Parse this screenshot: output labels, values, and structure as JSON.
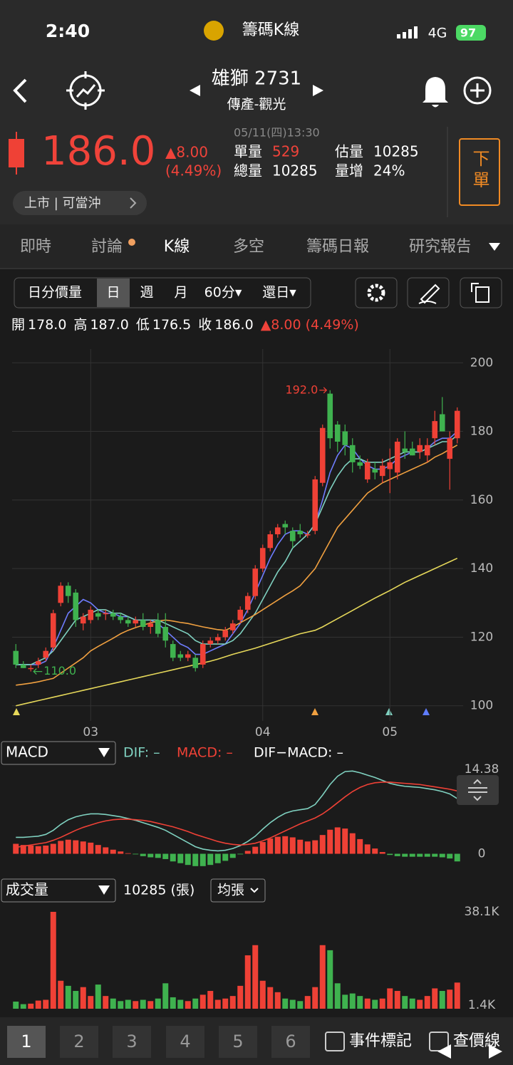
{
  "status_bar": {
    "time": "2:40",
    "app_title": "籌碼K線",
    "network": "4G",
    "battery": "97"
  },
  "header": {
    "stock_name": "雄獅 2731",
    "sector": "傳產-觀光"
  },
  "quote": {
    "price": "186.0",
    "change": "▲8.00",
    "change_pct": "(4.49%)",
    "timestamp": "05/11(四)13:30",
    "items": [
      {
        "label": "單量",
        "value": "529"
      },
      {
        "label": "總量",
        "value": "10285"
      },
      {
        "label": "估量",
        "value": "10285"
      },
      {
        "label": "量增",
        "value": "24%"
      }
    ],
    "market_tag": "上市 | 可當沖",
    "order_button": "下單"
  },
  "tabs": [
    "即時",
    "討論",
    "K線",
    "多空",
    "籌碼日報",
    "研究報告"
  ],
  "toolbar": [
    "日分價量",
    "日",
    "週",
    "月",
    "60分▾",
    "還日▾"
  ],
  "ohlc_summary": {
    "items": [
      {
        "label": "開",
        "value": "178.0"
      },
      {
        "label": "高",
        "value": "187.0"
      },
      {
        "label": "低",
        "value": "176.5"
      },
      {
        "label": "收",
        "value": "186.0"
      }
    ],
    "change": "▲8.00 (4.49%)"
  },
  "chart_data": [
    {
      "type": "candlestick",
      "up_color": "#ef4136",
      "down_color": "#3fb24f",
      "grid": true,
      "ylim": [
        96,
        204
      ],
      "yticks": [
        200,
        180,
        160,
        140,
        120,
        100
      ],
      "categories": [
        null,
        null,
        null,
        null,
        null,
        null,
        null,
        null,
        null,
        null,
        "03",
        null,
        null,
        null,
        null,
        null,
        null,
        null,
        null,
        null,
        null,
        null,
        null,
        null,
        null,
        null,
        null,
        null,
        null,
        null,
        null,
        null,
        null,
        "04",
        null,
        null,
        null,
        null,
        null,
        null,
        null,
        null,
        null,
        null,
        null,
        null,
        null,
        null,
        null,
        null,
        "05",
        null,
        null,
        null,
        null,
        null,
        null,
        null,
        null,
        null
      ],
      "open": [
        116,
        112,
        111,
        112,
        114,
        117,
        130,
        135,
        133,
        124,
        125,
        127,
        127,
        127,
        126,
        125,
        124,
        125,
        123,
        125,
        123,
        118,
        115,
        114,
        114,
        112,
        118,
        119,
        120,
        122,
        125,
        128,
        132,
        140,
        146,
        150,
        153,
        151,
        151,
        150,
        151,
        165,
        191,
        182,
        180,
        176,
        171,
        166,
        169,
        167,
        169,
        168,
        175,
        175,
        174,
        173,
        178,
        185,
        172,
        178
      ],
      "high": [
        118,
        113,
        112,
        114,
        117,
        128,
        136,
        136,
        134,
        127,
        129,
        128,
        128,
        128,
        127,
        126,
        126,
        127,
        125,
        127,
        127,
        119,
        116,
        116,
        115,
        119,
        120,
        121,
        123,
        125,
        129,
        133,
        141,
        147,
        151,
        153,
        154,
        152,
        153,
        151,
        167,
        182,
        192,
        183,
        182,
        178,
        173,
        172,
        171,
        172,
        175,
        178,
        180,
        177,
        178,
        178,
        186,
        190,
        180,
        187
      ],
      "low": [
        111,
        111,
        110,
        111,
        113,
        116,
        129,
        130,
        123,
        122,
        124,
        125,
        125,
        125,
        124,
        123,
        123,
        122,
        121,
        120,
        117,
        113,
        113,
        113,
        110,
        111,
        117,
        118,
        119,
        121,
        124,
        127,
        131,
        139,
        145,
        149,
        150,
        146,
        149,
        149,
        150,
        164,
        175,
        174,
        173,
        168,
        169,
        165,
        166,
        165,
        162,
        166,
        172,
        173,
        172,
        171,
        176,
        180,
        163,
        176.5
      ],
      "close": [
        112,
        111,
        111,
        113,
        116,
        127,
        135,
        132,
        125,
        126,
        128,
        126,
        127,
        126,
        125,
        124,
        125,
        123,
        124,
        121,
        119,
        114,
        114,
        115,
        111,
        118,
        119,
        120,
        122,
        124,
        128,
        132,
        140,
        146,
        150,
        152,
        152,
        148,
        150,
        150,
        166,
        181,
        178,
        177,
        176,
        171,
        170,
        171,
        168,
        170,
        171,
        177,
        174,
        173,
        176,
        176,
        183,
        180,
        178,
        186
      ],
      "ma_lines": [
        {
          "color": "#6f7dff",
          "values": [
            112,
            112,
            112,
            112,
            113,
            117,
            122,
            127,
            129,
            131,
            130,
            128,
            127,
            127,
            126,
            126,
            125,
            125,
            125,
            124,
            122,
            120,
            118,
            117,
            115,
            115,
            116,
            117,
            118,
            121,
            124,
            128,
            133,
            138,
            143,
            147,
            150,
            151,
            151,
            150,
            153,
            160,
            168,
            173,
            176,
            175,
            172,
            170,
            169,
            169,
            170,
            172,
            173,
            174,
            174,
            175,
            177,
            178,
            178,
            180
          ]
        },
        {
          "color": "#7fd1c0",
          "values": [
            112,
            112,
            112,
            113,
            114,
            116,
            119,
            122,
            125,
            126,
            127,
            128,
            128,
            127,
            127,
            126,
            125,
            125,
            125,
            125,
            124,
            123,
            122,
            121,
            119,
            118,
            118,
            118,
            118,
            119,
            121,
            124,
            127,
            131,
            135,
            139,
            142,
            146,
            148,
            150,
            153,
            158,
            163,
            167,
            170,
            172,
            172,
            171,
            171,
            171,
            172,
            173,
            174,
            174,
            174,
            175,
            176,
            177,
            177,
            179
          ]
        },
        {
          "color": "#f0a040",
          "values": [
            106,
            106.3,
            106.6,
            107,
            107.5,
            108,
            109.5,
            111,
            112.5,
            114,
            116,
            117.3,
            118.5,
            119.7,
            121,
            122,
            122.8,
            123.5,
            124.2,
            124.7,
            125,
            124.7,
            124.3,
            124,
            123.5,
            123,
            122.6,
            122.2,
            122,
            123,
            124.2,
            125.4,
            126.6,
            128,
            129.4,
            130.8,
            132.2,
            133.5,
            135,
            137.5,
            140,
            144,
            148,
            152,
            154.5,
            157,
            159.5,
            162,
            163.5,
            165,
            166,
            167,
            168,
            169,
            170,
            171,
            172.5,
            173.5,
            174.8,
            176
          ]
        },
        {
          "color": "#e6d85a",
          "values": [
            100,
            100.5,
            101,
            101.5,
            102,
            102.5,
            103,
            103.5,
            104,
            104.5,
            105,
            105.5,
            106,
            106.5,
            107,
            107.5,
            108,
            108.5,
            109,
            109.5,
            110,
            110.5,
            111,
            111.5,
            112,
            112.5,
            113,
            113.6,
            114.3,
            115,
            115.6,
            116.2,
            116.8,
            117.5,
            118.2,
            118.9,
            119.6,
            120.3,
            121,
            121.5,
            122,
            123,
            124.2,
            125.4,
            126.6,
            127.8,
            129,
            130.2,
            131.4,
            132.5,
            133.6,
            134.8,
            136,
            137,
            138,
            139,
            140,
            141,
            142,
            143
          ]
        }
      ],
      "annotations": [
        {
          "value": 192,
          "label": "192.0"
        },
        {
          "value": 110,
          "label": "110.0"
        }
      ]
    },
    {
      "type": "macd",
      "indicator": "MACD",
      "ylim": [
        -2,
        14.38
      ],
      "yticks": [
        14.38,
        0
      ],
      "up_color": "#ef4136",
      "down_color": "#3fb24f",
      "legend": [
        {
          "text": "DIF: –",
          "color": "#7fd1c0"
        },
        {
          "text": "MACD: –",
          "color": "#ef4136"
        },
        {
          "text": "DIF−MACD: –",
          "color": "#ffffff"
        }
      ],
      "series": [
        {
          "color": "#7fd1c0",
          "values": [
            2.8,
            2.8,
            2.9,
            3.0,
            3.3,
            4.0,
            5.0,
            5.8,
            6.3,
            6.6,
            6.8,
            6.8,
            6.7,
            6.5,
            6.3,
            6.0,
            5.7,
            5.3,
            4.9,
            4.5,
            4.0,
            3.3,
            2.6,
            1.9,
            1.2,
            0.8,
            0.6,
            0.5,
            0.6,
            0.9,
            1.4,
            2.1,
            3.0,
            4.2,
            5.3,
            6.2,
            6.9,
            7.3,
            7.5,
            7.7,
            8.4,
            10.0,
            11.8,
            13.2,
            14.0,
            14.1,
            13.8,
            13.4,
            13.0,
            12.5,
            12.0,
            11.7,
            11.5,
            11.4,
            11.3,
            11.1,
            10.9,
            10.6,
            10.2,
            9.4
          ]
        },
        {
          "color": "#ef4136",
          "values": [
            1.1,
            1.3,
            1.5,
            1.7,
            1.9,
            2.3,
            2.8,
            3.4,
            4.0,
            4.5,
            4.9,
            5.3,
            5.6,
            5.8,
            5.9,
            5.9,
            5.8,
            5.7,
            5.5,
            5.2,
            4.9,
            4.6,
            4.2,
            3.8,
            3.3,
            2.9,
            2.5,
            2.1,
            1.8,
            1.6,
            1.5,
            1.6,
            1.8,
            2.2,
            2.7,
            3.3,
            3.9,
            4.5,
            5.1,
            5.6,
            6.1,
            6.8,
            7.7,
            8.7,
            9.7,
            10.6,
            11.3,
            11.8,
            12.1,
            12.2,
            12.2,
            12.1,
            12.0,
            11.9,
            11.8,
            11.6,
            11.4,
            11.2,
            11.0,
            10.7
          ]
        }
      ],
      "histogram": [
        1.7,
        1.5,
        1.4,
        1.3,
        1.4,
        1.7,
        2.2,
        2.4,
        2.3,
        2.1,
        1.9,
        1.5,
        1.1,
        0.7,
        0.4,
        0.1,
        -0.1,
        -0.4,
        -0.6,
        -0.7,
        -0.9,
        -1.3,
        -1.6,
        -1.9,
        -2.1,
        -2.1,
        -1.9,
        -1.6,
        -1.2,
        -0.7,
        -0.1,
        0.5,
        1.2,
        2.0,
        2.6,
        2.9,
        3.0,
        2.8,
        2.4,
        2.1,
        2.3,
        3.2,
        4.1,
        4.5,
        4.3,
        3.5,
        2.5,
        1.6,
        0.9,
        0.3,
        -0.2,
        -0.4,
        -0.5,
        -0.5,
        -0.5,
        -0.5,
        -0.5,
        -0.6,
        -0.8,
        -1.3
      ]
    },
    {
      "type": "bar",
      "indicator": "成交量",
      "total": "10285 (張)",
      "average_button": "均張",
      "ylim": [
        0,
        38100
      ],
      "yticks": [
        {
          "value": 38100,
          "label": "38.1K"
        },
        {
          "value": 1400,
          "label": "1.4K"
        }
      ],
      "values": [
        2800,
        1800,
        2000,
        3200,
        3500,
        38100,
        11000,
        9000,
        7000,
        8500,
        5000,
        9500,
        5000,
        4000,
        3000,
        3500,
        3000,
        3500,
        3000,
        4000,
        10000,
        4500,
        3500,
        3000,
        4000,
        5500,
        7000,
        3500,
        4000,
        5000,
        9000,
        21000,
        25000,
        11000,
        8500,
        6500,
        4000,
        3500,
        3000,
        5000,
        8500,
        25000,
        23000,
        10000,
        5500,
        6000,
        5000,
        4000,
        3500,
        4000,
        8000,
        7000,
        5000,
        4000,
        3500,
        5000,
        8000,
        7000,
        7500,
        10285
      ]
    }
  ],
  "bottom_bar": {
    "pages": [
      "1",
      "2",
      "3",
      "4",
      "5",
      "6"
    ],
    "options": [
      "事件標記",
      "查價線"
    ]
  }
}
